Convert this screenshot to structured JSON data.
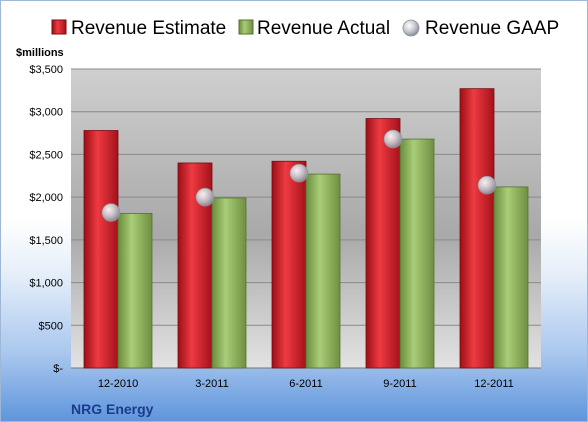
{
  "chart_data": {
    "type": "bar",
    "company": "NRG Energy",
    "unit_label": "$millions",
    "categories": [
      "12-2010",
      "3-2011",
      "6-2011",
      "9-2011",
      "12-2011"
    ],
    "series": [
      {
        "name": "Revenue Estimate",
        "kind": "bar",
        "color": "#d8202a",
        "values": [
          2780,
          2400,
          2420,
          2920,
          3270
        ]
      },
      {
        "name": "Revenue Actual",
        "kind": "bar",
        "color": "#8db55c",
        "values": [
          1810,
          1990,
          2270,
          2680,
          2120
        ]
      },
      {
        "name": "Revenue GAAP",
        "kind": "marker",
        "color": "#c8cbd2",
        "values": [
          1820,
          2000,
          2280,
          2680,
          2140
        ]
      }
    ],
    "y_ticks": [
      {
        "value": 0,
        "label": "$-"
      },
      {
        "value": 500,
        "label": "$500"
      },
      {
        "value": 1000,
        "label": "$1,000"
      },
      {
        "value": 1500,
        "label": "$1,500"
      },
      {
        "value": 2000,
        "label": "$2,000"
      },
      {
        "value": 2500,
        "label": "$2,500"
      },
      {
        "value": 3000,
        "label": "$3,000"
      },
      {
        "value": 3500,
        "label": "$3,500"
      }
    ],
    "ylim": [
      0,
      3500
    ],
    "grid": true,
    "legend": "top"
  }
}
